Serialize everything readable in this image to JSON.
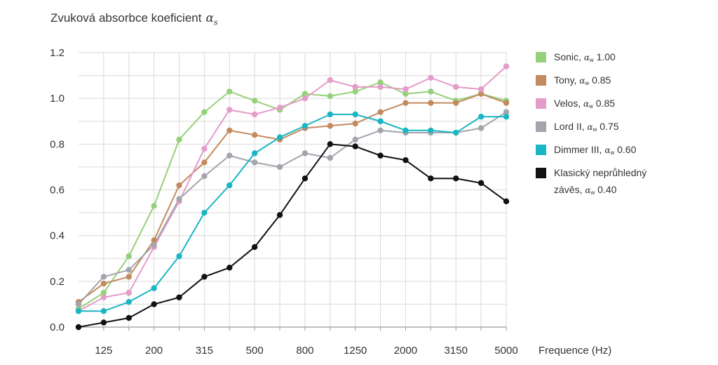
{
  "chart_data": {
    "type": "line",
    "title": "Zvuková absorbce koeficient",
    "title_symbol": "α",
    "title_subscript": "s",
    "xlabel": "Frequence (Hz)",
    "ylabel": "",
    "ylim": [
      0,
      1.2
    ],
    "yticks": [
      "0.0",
      "0.2",
      "0.4",
      "0.6",
      "0.8",
      "1.0",
      "1.2"
    ],
    "x": [
      "100",
      "125",
      "160",
      "200",
      "250",
      "315",
      "400",
      "500",
      "630",
      "800",
      "1000",
      "1250",
      "1600",
      "2000",
      "2500",
      "3150",
      "4000",
      "5000"
    ],
    "xtick_labels": [
      "125",
      "200",
      "315",
      "500",
      "800",
      "1250",
      "2000",
      "3150",
      "5000"
    ],
    "grid": true,
    "legend_position": "right",
    "series": [
      {
        "name": "Sonic,",
        "rating": "1.00",
        "color": "#95d17a",
        "values": [
          0.08,
          0.15,
          0.31,
          0.53,
          0.82,
          0.94,
          1.03,
          0.99,
          0.95,
          1.02,
          1.01,
          1.03,
          1.07,
          1.02,
          1.03,
          0.99,
          1.02,
          0.99
        ]
      },
      {
        "name": "Tony,",
        "rating": "0.85",
        "color": "#c48a5f",
        "values": [
          0.11,
          0.19,
          0.22,
          0.38,
          0.62,
          0.72,
          0.86,
          0.84,
          0.82,
          0.87,
          0.88,
          0.89,
          0.94,
          0.98,
          0.98,
          0.98,
          1.02,
          0.98
        ]
      },
      {
        "name": "Velos,",
        "rating": "0.85",
        "color": "#e49cc9",
        "values": [
          0.07,
          0.13,
          0.15,
          0.35,
          0.55,
          0.78,
          0.95,
          0.93,
          0.96,
          1.0,
          1.08,
          1.05,
          1.05,
          1.04,
          1.09,
          1.05,
          1.04,
          1.14
        ]
      },
      {
        "name": "Lord II,",
        "rating": "0.75",
        "color": "#a3a5ac",
        "values": [
          0.1,
          0.22,
          0.25,
          0.36,
          0.56,
          0.66,
          0.75,
          0.72,
          0.7,
          0.76,
          0.74,
          0.82,
          0.86,
          0.85,
          0.85,
          0.85,
          0.87,
          0.94
        ]
      },
      {
        "name": "Dimmer III,",
        "rating": "0.60",
        "color": "#1bb6c4",
        "values": [
          0.07,
          0.07,
          0.11,
          0.17,
          0.31,
          0.5,
          0.62,
          0.76,
          0.83,
          0.88,
          0.93,
          0.93,
          0.9,
          0.86,
          0.86,
          0.85,
          0.92,
          0.92
        ]
      },
      {
        "name": "Klasický neprůhledný",
        "name_line2": "závěs,",
        "rating": "0.40",
        "color": "#111111",
        "values": [
          0.0,
          0.02,
          0.04,
          0.1,
          0.13,
          0.22,
          0.26,
          0.35,
          0.49,
          0.65,
          0.8,
          0.79,
          0.75,
          0.73,
          0.65,
          0.65,
          0.63,
          0.55
        ]
      }
    ]
  },
  "legend_subscript": "w",
  "grid_color": "#d9d9d9",
  "axis_color": "#999999"
}
